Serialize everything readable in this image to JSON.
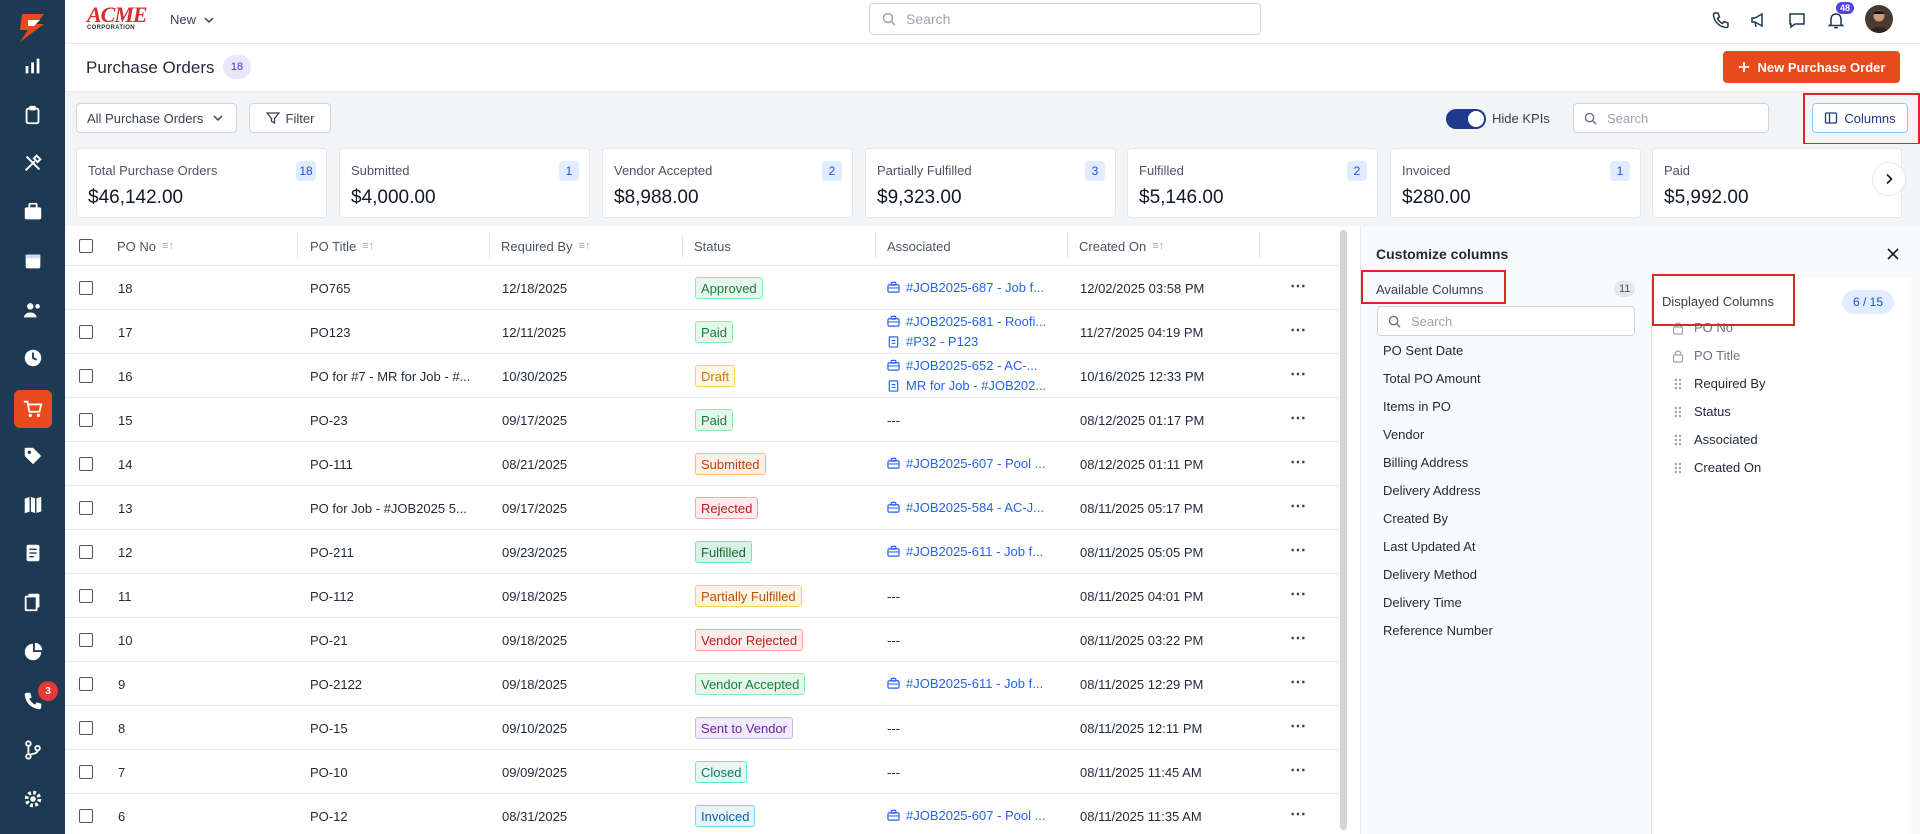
{
  "brand": {
    "name": "ACME",
    "sub": "CORPORATION"
  },
  "topbar": {
    "new_label": "New",
    "search_placeholder": "Search",
    "notifications_count": "48",
    "icons": [
      "phone-icon",
      "megaphone-icon",
      "chat-icon",
      "bell-icon"
    ]
  },
  "sidebar": {
    "items": [
      {
        "icon": "dashboard-icon"
      },
      {
        "icon": "clipboard-icon"
      },
      {
        "icon": "tools-icon"
      },
      {
        "icon": "briefcase-icon"
      },
      {
        "icon": "calendar-icon"
      },
      {
        "icon": "users-icon"
      },
      {
        "icon": "clock-icon"
      },
      {
        "icon": "cart-icon",
        "active": true
      },
      {
        "icon": "tag-icon"
      },
      {
        "icon": "map-icon"
      },
      {
        "icon": "invoice-icon"
      },
      {
        "icon": "documents-icon"
      },
      {
        "icon": "pie-chart-icon"
      },
      {
        "icon": "call-log-icon",
        "badge": "3"
      },
      {
        "icon": "workflow-icon"
      },
      {
        "icon": "settings-icon"
      }
    ],
    "active_color": "#e8491d"
  },
  "header": {
    "title": "Purchase Orders",
    "count": "18",
    "new_button_label": "New Purchase Order"
  },
  "filters": {
    "view_select": "All Purchase Orders",
    "filter_label": "Filter",
    "hide_kpis_label": "Hide KPIs",
    "hide_kpis_on": true,
    "search_placeholder": "Search",
    "columns_label": "Columns"
  },
  "kpis": [
    {
      "label": "Total Purchase Orders",
      "value": "$46,142.00",
      "count": "18"
    },
    {
      "label": "Submitted",
      "value": "$4,000.00",
      "count": "1"
    },
    {
      "label": "Vendor Accepted",
      "value": "$8,988.00",
      "count": "2"
    },
    {
      "label": "Partially Fulfilled",
      "value": "$9,323.00",
      "count": "3"
    },
    {
      "label": "Fulfilled",
      "value": "$5,146.00",
      "count": "2"
    },
    {
      "label": "Invoiced",
      "value": "$280.00",
      "count": "1"
    },
    {
      "label": "Paid",
      "value": "$5,992.00",
      "count": ""
    }
  ],
  "table": {
    "headers": [
      "PO No",
      "PO Title",
      "Required By",
      "Status",
      "Associated",
      "Created On"
    ],
    "rows": [
      {
        "no": "18",
        "title": "PO765",
        "required": "12/18/2025",
        "status": "Approved",
        "assoc": [
          "#JOB2025-687 - Job f..."
        ],
        "created": "12/02/2025 03:58 PM"
      },
      {
        "no": "17",
        "title": "PO123",
        "required": "12/11/2025",
        "status": "Paid",
        "assoc": [
          "#JOB2025-681 - Roofi...",
          "#P32 - P123"
        ],
        "created": "11/27/2025 04:19 PM"
      },
      {
        "no": "16",
        "title": "PO for #7 - MR for Job - #...",
        "required": "10/30/2025",
        "status": "Draft",
        "assoc": [
          "#JOB2025-652 - AC-...",
          "MR for Job - #JOB202..."
        ],
        "created": "10/16/2025 12:33 PM"
      },
      {
        "no": "15",
        "title": "PO-23",
        "required": "09/17/2025",
        "status": "Paid",
        "assoc": [],
        "created": "08/12/2025 01:17 PM"
      },
      {
        "no": "14",
        "title": "PO-111",
        "required": "08/21/2025",
        "status": "Submitted",
        "assoc": [
          "#JOB2025-607 - Pool ..."
        ],
        "created": "08/12/2025 01:11 PM"
      },
      {
        "no": "13",
        "title": "PO for Job - #JOB2025 5...",
        "required": "09/17/2025",
        "status": "Rejected",
        "assoc": [
          "#JOB2025-584 - AC-J..."
        ],
        "created": "08/11/2025 05:17 PM"
      },
      {
        "no": "12",
        "title": "PO-211",
        "required": "09/23/2025",
        "status": "Fulfilled",
        "assoc": [
          "#JOB2025-611 - Job f..."
        ],
        "created": "08/11/2025 05:05 PM"
      },
      {
        "no": "11",
        "title": "PO-112",
        "required": "09/18/2025",
        "status": "Partially Fulfilled",
        "assoc": [],
        "created": "08/11/2025 04:01 PM"
      },
      {
        "no": "10",
        "title": "PO-21",
        "required": "09/18/2025",
        "status": "Vendor Rejected",
        "assoc": [],
        "created": "08/11/2025 03:22 PM"
      },
      {
        "no": "9",
        "title": "PO-2122",
        "required": "09/18/2025",
        "status": "Vendor Accepted",
        "assoc": [
          "#JOB2025-611 - Job f..."
        ],
        "created": "08/11/2025 12:29 PM"
      },
      {
        "no": "8",
        "title": "PO-15",
        "required": "09/10/2025",
        "status": "Sent to Vendor",
        "assoc": [],
        "created": "08/11/2025 12:11 PM"
      },
      {
        "no": "7",
        "title": "PO-10",
        "required": "09/09/2025",
        "status": "Closed",
        "assoc": [],
        "created": "08/11/2025 11:45 AM"
      },
      {
        "no": "6",
        "title": "PO-12",
        "required": "08/31/2025",
        "status": "Invoiced",
        "assoc": [
          "#JOB2025-607 - Pool ..."
        ],
        "created": "08/11/2025 11:35 AM"
      }
    ],
    "empty_assoc": "---"
  },
  "status_colors": {
    "Approved": {
      "bg": "#e7f6ec",
      "fg": "#15803d",
      "border": "#86efac"
    },
    "Paid": {
      "bg": "#e7f6ec",
      "fg": "#15803d",
      "border": "#86efac"
    },
    "Draft": {
      "bg": "#fff7e6",
      "fg": "#d97706",
      "border": "#fcd34d"
    },
    "Submitted": {
      "bg": "#fdf1e7",
      "fg": "#c2410c",
      "border": "#fdba74"
    },
    "Rejected": {
      "bg": "#fdecec",
      "fg": "#b91c1c",
      "border": "#fca5a5"
    },
    "Fulfilled": {
      "bg": "#d9f2e3",
      "fg": "#166534",
      "border": "#6ee7b7"
    },
    "Partially Fulfilled": {
      "bg": "#fdf3e1",
      "fg": "#b45309",
      "border": "#fcd34d"
    },
    "Vendor Rejected": {
      "bg": "#fdecec",
      "fg": "#b91c1c",
      "border": "#fca5a5"
    },
    "Vendor Accepted": {
      "bg": "#e7f6ec",
      "fg": "#15803d",
      "border": "#86efac"
    },
    "Sent to Vendor": {
      "bg": "#f1ebfb",
      "fg": "#6b21a8",
      "border": "#c4b5fd"
    },
    "Closed": {
      "bg": "#e6f7f1",
      "fg": "#0f766e",
      "border": "#5eead4"
    },
    "Invoiced": {
      "bg": "#e6f3fb",
      "fg": "#0369a1",
      "border": "#7dd3fc"
    }
  },
  "customize": {
    "title": "Customize columns",
    "available_label": "Available Columns",
    "available_count": "11",
    "search_placeholder": "Search",
    "available": [
      "PO Sent Date",
      "Total PO Amount",
      "Items in PO",
      "Vendor",
      "Billing Address",
      "Delivery Address",
      "Created By",
      "Last Updated At",
      "Delivery Method",
      "Delivery Time",
      "Reference Number"
    ],
    "displayed_label": "Displayed Columns",
    "displayed_count": "6 / 15",
    "displayed": [
      {
        "label": "PO No",
        "locked": true
      },
      {
        "label": "PO Title",
        "locked": true
      },
      {
        "label": "Required By",
        "locked": false
      },
      {
        "label": "Status",
        "locked": false
      },
      {
        "label": "Associated",
        "locked": false
      },
      {
        "label": "Created On",
        "locked": false
      }
    ]
  }
}
